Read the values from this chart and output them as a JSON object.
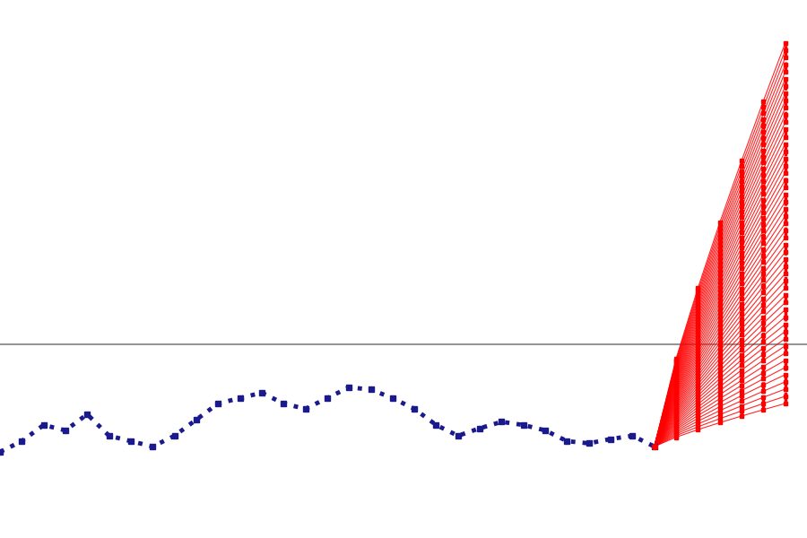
{
  "bg_color": "#ffffff",
  "zero_line_color": "#808080",
  "zero_line_y": 0.0,
  "obs_color": "#1a1a8c",
  "ens_color": "#ff0000",
  "obs_x_start": -30,
  "obs_x_end": 0,
  "obs_values": [
    -1.0,
    -0.9,
    -0.75,
    -0.8,
    -0.65,
    -0.85,
    -0.9,
    -0.95,
    -0.85,
    -0.7,
    -0.55,
    -0.5,
    -0.45,
    -0.55,
    -0.6,
    -0.5,
    -0.4,
    -0.42,
    -0.5,
    -0.6,
    -0.75,
    -0.85,
    -0.78,
    -0.72,
    -0.75,
    -0.8,
    -0.9,
    -0.92,
    -0.88,
    -0.85,
    -0.95
  ],
  "n_members": 51,
  "n_lead_times": 6,
  "lead_times": [
    1,
    2,
    3,
    4,
    5,
    6
  ],
  "start_value": -0.95,
  "member_finals_min": -0.55,
  "member_finals_max": 2.8,
  "ylim": [
    -1.8,
    3.2
  ],
  "xlim": [
    -30,
    7
  ],
  "obs_linewidth": 3.5,
  "obs_markersize": 5,
  "ens_linewidth": 0.8,
  "ens_markersize": 3,
  "vert_linewidth": 2.5,
  "zero_linewidth": 1.2
}
